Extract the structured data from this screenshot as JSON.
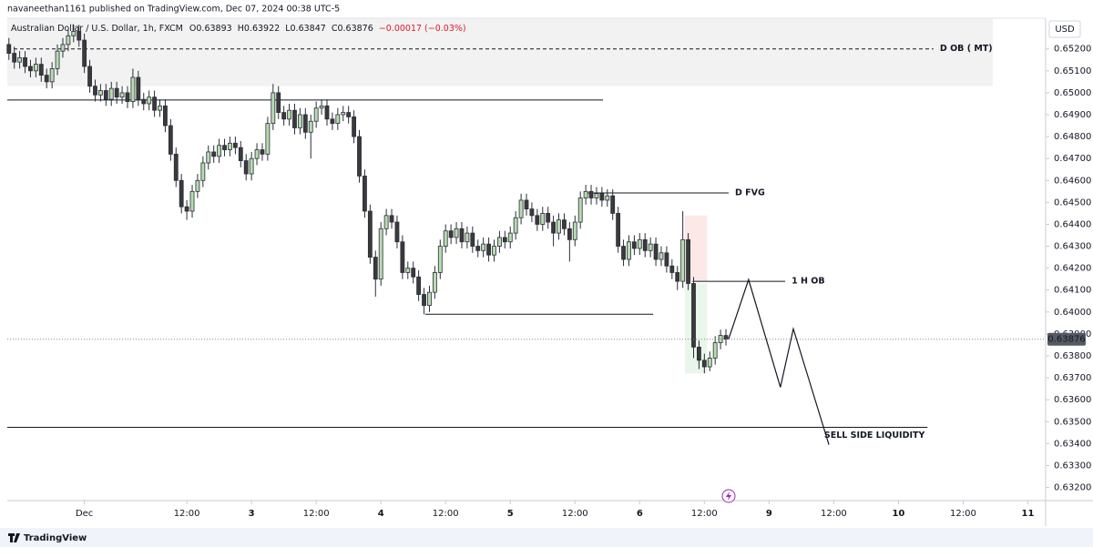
{
  "chart_data": {
    "type": "candlestick",
    "publisher": "navaneethan1161 published on TradingView.com, Dec 07, 2024 00:38 UTC-5",
    "title": "Australian Dollar / U.S. Dollar, 1h, FXCM",
    "ohlc_prefixes": [
      "O",
      "H",
      "L",
      "C"
    ],
    "change_label": "−0.00017 (−0.03%)",
    "currency": "USD",
    "brand": "TradingView",
    "up_color": "#b7dcb0",
    "down_color": "#3a3a3a",
    "x": [
      0,
      1,
      2,
      3,
      4,
      5,
      6,
      7,
      8,
      9,
      10,
      11,
      12,
      13,
      14,
      15,
      16,
      17,
      18,
      19,
      20,
      21,
      22,
      23,
      24,
      25,
      26,
      27,
      28,
      29,
      30,
      31,
      32,
      33,
      34,
      35,
      36,
      37,
      38,
      39,
      40,
      41,
      42,
      43,
      44,
      45,
      46,
      47,
      48,
      49,
      50,
      51,
      52,
      53,
      54,
      55,
      56,
      57,
      58,
      59,
      60,
      61,
      62,
      63,
      64,
      65,
      66,
      67,
      68,
      69,
      70,
      71,
      72,
      73,
      74,
      75,
      76,
      77,
      78,
      79,
      80,
      81,
      82,
      83,
      84,
      85,
      86,
      87,
      88,
      89,
      90,
      91,
      92,
      93,
      94,
      95,
      96,
      97,
      98,
      99,
      100,
      101,
      102,
      103,
      104,
      105,
      106,
      107,
      108,
      109,
      110,
      111,
      112,
      113,
      114,
      115,
      116,
      117,
      118,
      119,
      120,
      121,
      122,
      123,
      124,
      125,
      126,
      127,
      128,
      129,
      130,
      131,
      132,
      133
    ],
    "open": [
      0.6522,
      0.6518,
      0.6514,
      0.6516,
      0.6512,
      0.651,
      0.6513,
      0.6508,
      0.6505,
      0.6511,
      0.6519,
      0.6522,
      0.6526,
      0.6528,
      0.6524,
      0.6512,
      0.6503,
      0.6499,
      0.6501,
      0.6497,
      0.6502,
      0.6498,
      0.65,
      0.6496,
      0.6507,
      0.6497,
      0.6495,
      0.6498,
      0.6492,
      0.6494,
      0.6485,
      0.6472,
      0.646,
      0.6448,
      0.6446,
      0.6455,
      0.646,
      0.6468,
      0.6473,
      0.6471,
      0.6476,
      0.6474,
      0.6477,
      0.6475,
      0.6469,
      0.6463,
      0.647,
      0.6474,
      0.6472,
      0.6486,
      0.65,
      0.6491,
      0.6488,
      0.6492,
      0.6484,
      0.649,
      0.6482,
      0.6487,
      0.6493,
      0.6494,
      0.6488,
      0.6486,
      0.649,
      0.6491,
      0.6489,
      0.648,
      0.6462,
      0.6446,
      0.6425,
      0.6415,
      0.6438,
      0.6444,
      0.6441,
      0.6432,
      0.6418,
      0.642,
      0.6416,
      0.6408,
      0.6403,
      0.6409,
      0.6418,
      0.643,
      0.6437,
      0.6434,
      0.6438,
      0.6432,
      0.6436,
      0.643,
      0.6428,
      0.6431,
      0.6426,
      0.643,
      0.6434,
      0.6432,
      0.6436,
      0.6443,
      0.6451,
      0.6447,
      0.6444,
      0.644,
      0.6445,
      0.6441,
      0.6436,
      0.6442,
      0.6438,
      0.6433,
      0.6441,
      0.6452,
      0.6455,
      0.6452,
      0.6454,
      0.6451,
      0.6453,
      0.6445,
      0.643,
      0.6424,
      0.6432,
      0.6429,
      0.6433,
      0.6428,
      0.6431,
      0.6424,
      0.6427,
      0.6421,
      0.6418,
      0.6414,
      0.6433,
      0.6413,
      0.6384,
      0.6378,
      0.6375,
      0.6379,
      0.6386,
      0.63893
    ],
    "high": [
      0.6525,
      0.6521,
      0.6519,
      0.6519,
      0.6515,
      0.6516,
      0.6516,
      0.6511,
      0.6514,
      0.6522,
      0.6525,
      0.6529,
      0.6531,
      0.6531,
      0.6527,
      0.6515,
      0.6506,
      0.6504,
      0.6504,
      0.6505,
      0.6505,
      0.6503,
      0.6503,
      0.6511,
      0.651,
      0.65,
      0.6501,
      0.6501,
      0.6497,
      0.6497,
      0.6488,
      0.6475,
      0.6463,
      0.6451,
      0.6458,
      0.6463,
      0.6471,
      0.6476,
      0.6476,
      0.6479,
      0.6479,
      0.648,
      0.648,
      0.6478,
      0.6472,
      0.6473,
      0.6477,
      0.6477,
      0.6489,
      0.6504,
      0.6503,
      0.6494,
      0.6495,
      0.6495,
      0.6493,
      0.6493,
      0.649,
      0.6496,
      0.6497,
      0.6497,
      0.6491,
      0.6493,
      0.6494,
      0.6494,
      0.6492,
      0.6483,
      0.6465,
      0.6449,
      0.6428,
      0.6441,
      0.6447,
      0.6447,
      0.6444,
      0.6435,
      0.6423,
      0.6423,
      0.6419,
      0.6411,
      0.6412,
      0.6421,
      0.6433,
      0.644,
      0.644,
      0.6441,
      0.6441,
      0.6439,
      0.6439,
      0.6433,
      0.6434,
      0.6434,
      0.6433,
      0.6437,
      0.6437,
      0.6439,
      0.6446,
      0.6454,
      0.6454,
      0.645,
      0.6447,
      0.6448,
      0.6448,
      0.6444,
      0.6445,
      0.6445,
      0.6441,
      0.6444,
      0.6455,
      0.6458,
      0.6458,
      0.6457,
      0.6457,
      0.6456,
      0.6456,
      0.6448,
      0.6433,
      0.6435,
      0.6435,
      0.6436,
      0.6436,
      0.6434,
      0.6434,
      0.643,
      0.643,
      0.6424,
      0.6421,
      0.6446,
      0.6436,
      0.6416,
      0.6387,
      0.6381,
      0.6382,
      0.6389,
      0.6392,
      0.63922
    ],
    "low": [
      0.6515,
      0.6511,
      0.6511,
      0.6509,
      0.6507,
      0.6507,
      0.6505,
      0.6502,
      0.6502,
      0.6508,
      0.6516,
      0.6519,
      0.6523,
      0.6521,
      0.6509,
      0.65,
      0.6496,
      0.6496,
      0.6494,
      0.6494,
      0.6495,
      0.6495,
      0.6493,
      0.6493,
      0.6494,
      0.6492,
      0.6492,
      0.6489,
      0.6489,
      0.6482,
      0.6469,
      0.6457,
      0.6445,
      0.6442,
      0.6443,
      0.6452,
      0.6457,
      0.6465,
      0.6468,
      0.6468,
      0.6471,
      0.6471,
      0.6472,
      0.6466,
      0.646,
      0.646,
      0.6467,
      0.6469,
      0.6469,
      0.6483,
      0.6488,
      0.6485,
      0.6485,
      0.6481,
      0.6481,
      0.6479,
      0.647,
      0.6484,
      0.649,
      0.6485,
      0.6483,
      0.6483,
      0.6487,
      0.6486,
      0.6477,
      0.6459,
      0.6443,
      0.6422,
      0.6407,
      0.6412,
      0.6435,
      0.6438,
      0.6429,
      0.6415,
      0.6415,
      0.6413,
      0.6405,
      0.6399,
      0.64,
      0.6406,
      0.6415,
      0.6427,
      0.6431,
      0.6431,
      0.6429,
      0.6429,
      0.6427,
      0.6425,
      0.6425,
      0.6423,
      0.6423,
      0.6427,
      0.6429,
      0.6429,
      0.6433,
      0.644,
      0.6444,
      0.6441,
      0.6437,
      0.6437,
      0.6438,
      0.643,
      0.6433,
      0.6435,
      0.6423,
      0.643,
      0.6438,
      0.6449,
      0.6449,
      0.6449,
      0.6448,
      0.6448,
      0.6442,
      0.6427,
      0.6421,
      0.6421,
      0.6426,
      0.6426,
      0.6425,
      0.6425,
      0.6421,
      0.6421,
      0.6418,
      0.6415,
      0.641,
      0.6411,
      0.641,
      0.6379,
      0.6374,
      0.6372,
      0.6373,
      0.6376,
      0.6383,
      0.63847
    ],
    "close": [
      0.6518,
      0.6514,
      0.6516,
      0.6512,
      0.651,
      0.6513,
      0.6508,
      0.6505,
      0.6511,
      0.6519,
      0.6522,
      0.6526,
      0.6528,
      0.6524,
      0.6512,
      0.6503,
      0.6499,
      0.6501,
      0.6497,
      0.6502,
      0.6498,
      0.65,
      0.6496,
      0.6507,
      0.6497,
      0.6495,
      0.6498,
      0.6492,
      0.6494,
      0.6485,
      0.6472,
      0.646,
      0.6448,
      0.6446,
      0.6455,
      0.646,
      0.6468,
      0.6473,
      0.6471,
      0.6476,
      0.6474,
      0.6477,
      0.6475,
      0.6469,
      0.6463,
      0.647,
      0.6474,
      0.6472,
      0.6486,
      0.65,
      0.6491,
      0.6488,
      0.6492,
      0.6484,
      0.649,
      0.6482,
      0.6487,
      0.6493,
      0.6494,
      0.6488,
      0.6486,
      0.649,
      0.6491,
      0.6489,
      0.648,
      0.6462,
      0.6446,
      0.6425,
      0.6415,
      0.6438,
      0.6444,
      0.6441,
      0.6432,
      0.6418,
      0.642,
      0.6416,
      0.6408,
      0.6403,
      0.6409,
      0.6418,
      0.643,
      0.6437,
      0.6434,
      0.6438,
      0.6432,
      0.6436,
      0.643,
      0.6428,
      0.6431,
      0.6426,
      0.643,
      0.6434,
      0.6432,
      0.6436,
      0.6443,
      0.6451,
      0.6447,
      0.6444,
      0.644,
      0.6445,
      0.6441,
      0.6436,
      0.6442,
      0.6438,
      0.6433,
      0.6441,
      0.6452,
      0.6455,
      0.6452,
      0.6454,
      0.6451,
      0.6453,
      0.6445,
      0.643,
      0.6424,
      0.6432,
      0.6429,
      0.6433,
      0.6428,
      0.6431,
      0.6424,
      0.6427,
      0.6421,
      0.6418,
      0.6414,
      0.6433,
      0.6413,
      0.6384,
      0.6378,
      0.6375,
      0.6379,
      0.6386,
      0.63893,
      0.63876
    ],
    "xlim": [
      -0.3,
      192.3
    ],
    "xticks": [
      {
        "value": 14,
        "label": "Dec"
      },
      {
        "value": 33,
        "label": "12:00"
      },
      {
        "value": 45,
        "label": "3"
      },
      {
        "value": 57,
        "label": "12:00"
      },
      {
        "value": 69,
        "label": "4"
      },
      {
        "value": 81,
        "label": "12:00"
      },
      {
        "value": 93,
        "label": "5"
      },
      {
        "value": 105,
        "label": "12:00"
      },
      {
        "value": 117,
        "label": "6"
      },
      {
        "value": 129,
        "label": "12:00"
      },
      {
        "value": 141,
        "label": "9"
      },
      {
        "value": 153,
        "label": "12:00"
      },
      {
        "value": 165,
        "label": "10"
      },
      {
        "value": 177,
        "label": "12:00"
      },
      {
        "value": 189,
        "label": "11"
      }
    ],
    "ylim": [
      0.6314,
      0.6534
    ],
    "yticks": [
      {
        "value": 0.632,
        "label": "0.63200"
      },
      {
        "value": 0.633,
        "label": "0.63300"
      },
      {
        "value": 0.634,
        "label": "0.63400"
      },
      {
        "value": 0.635,
        "label": "0.63500"
      },
      {
        "value": 0.636,
        "label": "0.63600"
      },
      {
        "value": 0.637,
        "label": "0.63700"
      },
      {
        "value": 0.638,
        "label": "0.63800"
      },
      {
        "value": 0.639,
        "label": "0.63900"
      },
      {
        "value": 0.64,
        "label": "0.64000"
      },
      {
        "value": 0.641,
        "label": "0.64100"
      },
      {
        "value": 0.642,
        "label": "0.64200"
      },
      {
        "value": 0.643,
        "label": "0.64300"
      },
      {
        "value": 0.644,
        "label": "0.64400"
      },
      {
        "value": 0.645,
        "label": "0.64500"
      },
      {
        "value": 0.646,
        "label": "0.64600"
      },
      {
        "value": 0.647,
        "label": "0.64700"
      },
      {
        "value": 0.648,
        "label": "0.64800"
      },
      {
        "value": 0.649,
        "label": "0.64900"
      },
      {
        "value": 0.65,
        "label": "0.65000"
      },
      {
        "value": 0.651,
        "label": "0.65100"
      },
      {
        "value": 0.652,
        "label": "0.65200"
      }
    ],
    "grid": false,
    "zones": [
      {
        "x": [
          -0.3,
          182.5
        ],
        "y": [
          0.6503,
          0.6534
        ],
        "color": "#f2f2f2"
      },
      {
        "x": [
          125.4,
          129.5
        ],
        "y": [
          0.6414,
          0.6444
        ],
        "color": "#fde8e8"
      },
      {
        "x": [
          125.4,
          129.5
        ],
        "y": [
          0.6372,
          0.6413
        ],
        "color": "#e9f6ea"
      }
    ],
    "levels": [
      {
        "x": [
          -0.3,
          171.5
        ],
        "y": 0.652,
        "dashed": true,
        "label": "D OB ( MT)"
      },
      {
        "x": [
          -0.3,
          110.2
        ],
        "y": 0.64967
      },
      {
        "x": [
          107.3,
          133.5
        ],
        "y": 0.64543,
        "label": "D FVG"
      },
      {
        "x": [
          77.2,
          119.5
        ],
        "y": 0.6399
      },
      {
        "x": [
          126.8,
          144
        ],
        "y": 0.6414,
        "label": "1 H OB"
      },
      {
        "x": [
          -0.3,
          170.4
        ],
        "y": 0.63474,
        "label": "SELL SIDE LIQUIDITY",
        "label_color": "#e0182d",
        "label_side": "below"
      }
    ],
    "projection": {
      "x": [
        133.5,
        137.2,
        143.1,
        145.5,
        152.1
      ],
      "y": [
        0.63877,
        0.64148,
        0.63657,
        0.63923,
        0.63395
      ]
    }
  }
}
